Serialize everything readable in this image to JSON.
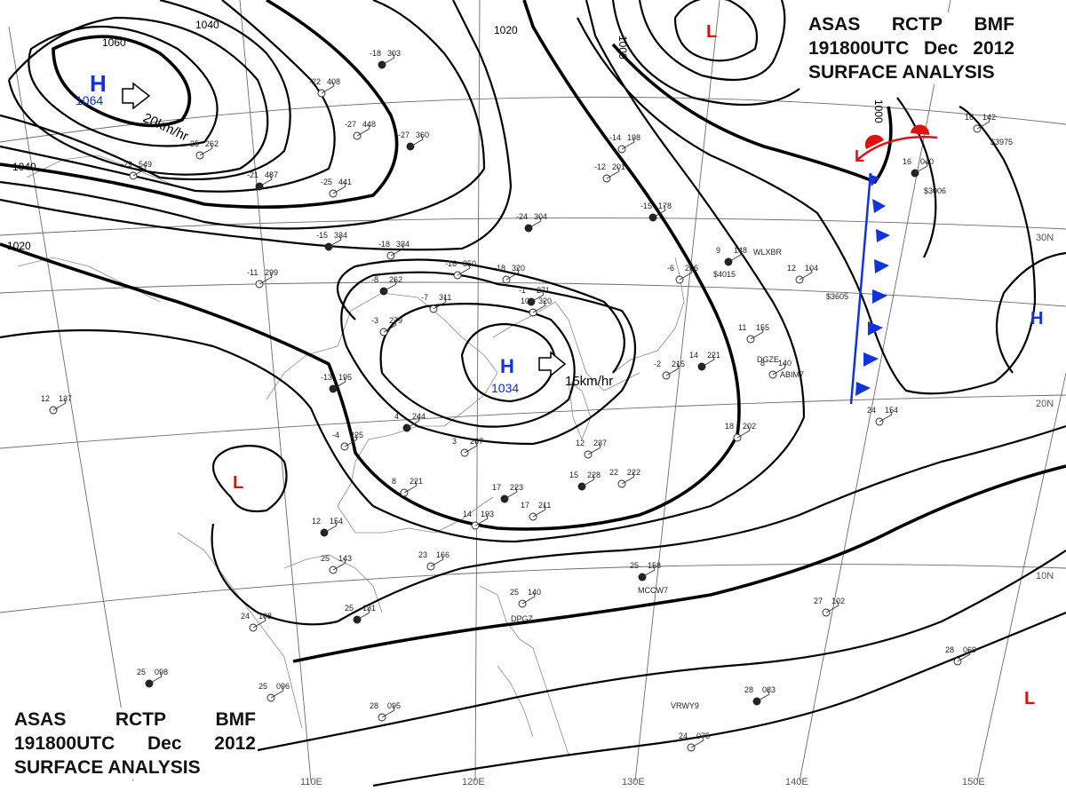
{
  "header": {
    "product": "ASAS",
    "station": "RCTP",
    "office": "BMF",
    "time": "191800UTC",
    "month": "Dec",
    "year": "2012",
    "type": "SURFACE ANALYSIS"
  },
  "longitudes": [
    "110E",
    "120E",
    "130E",
    "140E",
    "150E"
  ],
  "latitudes": [
    "30N",
    "20N",
    "10N"
  ],
  "isobar_labels": [
    "1060",
    "1040",
    "1040",
    "1020",
    "1020",
    "1000",
    "1000"
  ],
  "colors": {
    "high": "#1133dd",
    "low": "#e01010",
    "cold_front": "#1133dd",
    "warm_front": "#e01010",
    "isobar": "#000000",
    "grid": "#6b6b6b"
  },
  "systems": [
    {
      "kind": "H",
      "value": "1064",
      "motion": "20km/hr"
    },
    {
      "kind": "H",
      "value": "1034",
      "motion": "15km/hr"
    },
    {
      "kind": "H",
      "value": ""
    },
    {
      "kind": "L",
      "value": ""
    },
    {
      "kind": "L",
      "value": ""
    },
    {
      "kind": "L",
      "value": ""
    }
  ],
  "stations": [
    [
      "-18",
      "303"
    ],
    [
      "-22",
      "408"
    ],
    [
      "-27",
      "448"
    ],
    [
      "-27",
      "360"
    ],
    [
      "-35",
      "262"
    ],
    [
      "-29",
      "549"
    ],
    [
      "-21",
      "487"
    ],
    [
      "-25",
      "441"
    ],
    [
      "-11",
      "299"
    ],
    [
      "-15",
      "334"
    ],
    [
      "-18",
      "334"
    ],
    [
      "-16",
      "350"
    ],
    [
      "-8",
      "262"
    ],
    [
      "-7",
      "311"
    ],
    [
      "-3",
      "279"
    ],
    [
      "-1",
      "271"
    ],
    [
      "-18",
      "320"
    ],
    [
      "10",
      "320"
    ],
    [
      "-24",
      "304"
    ],
    [
      "-12",
      "201"
    ],
    [
      "-14",
      "198"
    ],
    [
      "-15",
      "178"
    ],
    [
      "-6",
      "206"
    ],
    [
      "-2",
      "215"
    ],
    [
      "-13",
      "195"
    ],
    [
      "12",
      "137"
    ],
    [
      "-4",
      "225"
    ],
    [
      "4",
      "244"
    ],
    [
      "3",
      "267"
    ],
    [
      "8",
      "221"
    ],
    [
      "17",
      "223"
    ],
    [
      "17",
      "211"
    ],
    [
      "12",
      "237"
    ],
    [
      "15",
      "228"
    ],
    [
      "22",
      "222"
    ],
    [
      "14",
      "193"
    ],
    [
      "12",
      "154"
    ],
    [
      "23",
      "166"
    ],
    [
      "25",
      "143"
    ],
    [
      "25",
      "131"
    ],
    [
      "25",
      "140"
    ],
    [
      "24",
      "108"
    ],
    [
      "25",
      "098"
    ],
    [
      "25",
      "096"
    ],
    [
      "28",
      "095"
    ],
    [
      "25",
      "158"
    ],
    [
      "27",
      "102"
    ],
    [
      "28",
      "069"
    ],
    [
      "28",
      "083"
    ],
    [
      "24",
      "075"
    ],
    [
      "16",
      "142"
    ],
    [
      "16",
      "040"
    ],
    [
      "11",
      "155"
    ],
    [
      "12",
      "104"
    ],
    [
      "9",
      "148"
    ],
    [
      "8",
      "140"
    ],
    [
      "18",
      "202"
    ],
    [
      "14",
      "221"
    ],
    [
      "24",
      "154"
    ]
  ],
  "station_ids": [
    "DPGZ",
    "MCCW7",
    "VRWY9",
    "WLXBR",
    "ABIM7",
    "DGZE",
    "$3605",
    "$4015",
    "$3975",
    "$3006"
  ]
}
